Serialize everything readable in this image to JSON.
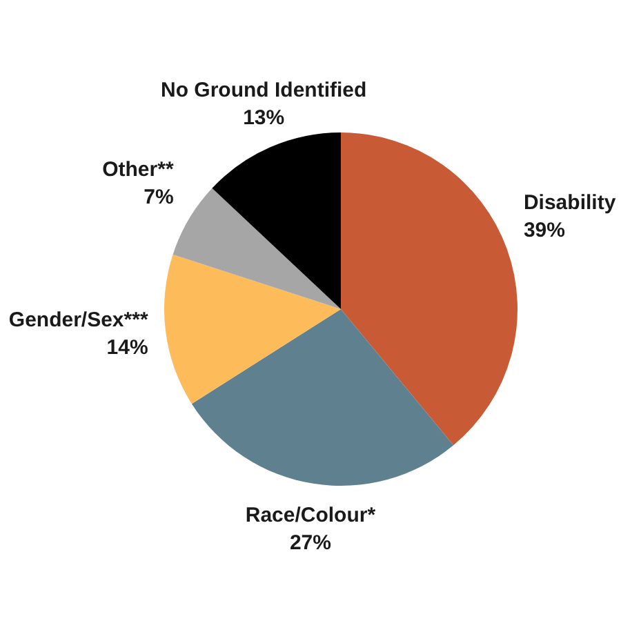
{
  "chart_data": {
    "type": "pie",
    "categories": [
      "Disability",
      "Race/Colour*",
      "Gender/Sex***",
      "Other**",
      "No Ground Identified"
    ],
    "values": [
      39,
      27,
      14,
      7,
      13
    ],
    "colors": [
      "#c85a35",
      "#5f808f",
      "#fdbb5a",
      "#a6a6a6",
      "#000000"
    ],
    "value_labels": [
      "39%",
      "27%",
      "14%",
      "7%",
      "13%"
    ]
  }
}
